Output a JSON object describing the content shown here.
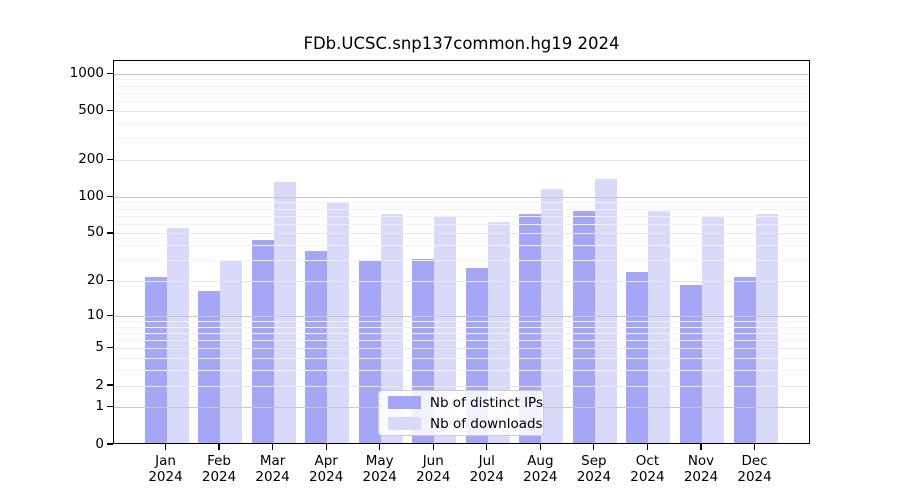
{
  "title": "FDb.UCSC.snp137common.hg19 2024",
  "chart_data": {
    "type": "bar",
    "scale": "log1p",
    "title": "FDb.UCSC.snp137common.hg19 2024",
    "xlabel": "",
    "ylabel": "",
    "year": "2024",
    "categories": [
      "Jan",
      "Feb",
      "Mar",
      "Apr",
      "May",
      "Jun",
      "Jul",
      "Aug",
      "Sep",
      "Oct",
      "Nov",
      "Dec"
    ],
    "series": [
      {
        "name": "Nb of distinct IPs",
        "color": "#a6a6f6",
        "values": [
          21,
          16,
          43,
          35,
          29,
          30,
          25,
          71,
          75,
          23,
          18,
          21
        ]
      },
      {
        "name": "Nb of downloads",
        "color": "#d9d9fa",
        "values": [
          54,
          29,
          128,
          88,
          70,
          66,
          61,
          112,
          136,
          74,
          66,
          70
        ]
      }
    ],
    "y_ticks": [
      0,
      1,
      2,
      5,
      10,
      20,
      50,
      100,
      200,
      500,
      1000
    ],
    "ylim": [
      0,
      1280
    ],
    "grid": "on",
    "legend_position": "lower-center-inside",
    "grid_colors": {
      "decade": "#c8c8c8",
      "tick": "#e6e6e6",
      "minor": "#f2f2f2"
    },
    "axis_color": "#000000"
  }
}
